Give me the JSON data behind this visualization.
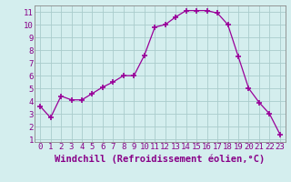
{
  "x": [
    0,
    1,
    2,
    3,
    4,
    5,
    6,
    7,
    8,
    9,
    10,
    11,
    12,
    13,
    14,
    15,
    16,
    17,
    18,
    19,
    20,
    21,
    22,
    23
  ],
  "y": [
    3.6,
    2.7,
    4.4,
    4.1,
    4.1,
    4.6,
    5.1,
    5.5,
    6.0,
    6.0,
    7.6,
    9.8,
    10.0,
    10.6,
    11.1,
    11.1,
    11.1,
    10.9,
    10.0,
    7.5,
    5.0,
    3.9,
    3.0,
    1.4
  ],
  "line_color": "#990099",
  "marker": "+",
  "marker_size": 4,
  "bg_color": "#d4eeee",
  "grid_color": "#aacccc",
  "xlabel": "Windchill (Refroidissement éolien,°C)",
  "xlim": [
    -0.5,
    23.5
  ],
  "ylim": [
    0.8,
    11.5
  ],
  "yticks": [
    1,
    2,
    3,
    4,
    5,
    6,
    7,
    8,
    9,
    10,
    11
  ],
  "xticks": [
    0,
    1,
    2,
    3,
    4,
    5,
    6,
    7,
    8,
    9,
    10,
    11,
    12,
    13,
    14,
    15,
    16,
    17,
    18,
    19,
    20,
    21,
    22,
    23
  ],
  "tick_fontsize": 6.5,
  "xlabel_fontsize": 7.5,
  "tick_color": "#880088",
  "label_color": "#880088",
  "spine_color": "#888888"
}
